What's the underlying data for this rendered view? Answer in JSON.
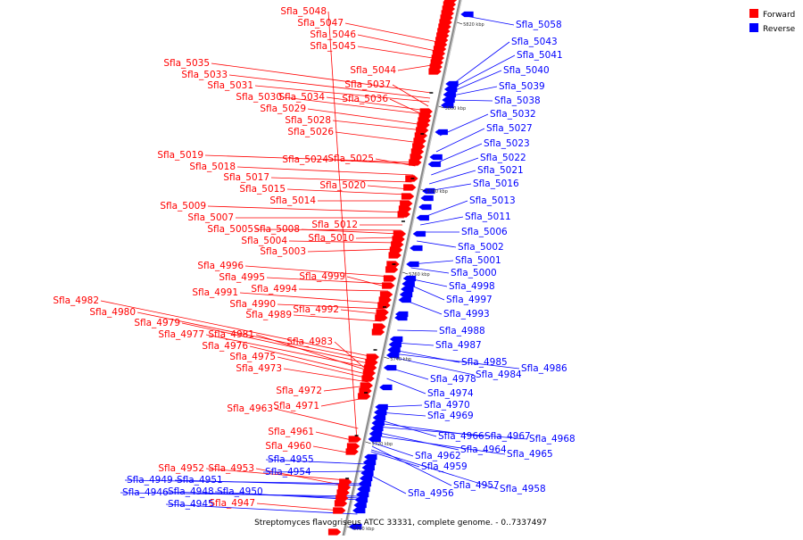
{
  "legend": {
    "forward_label": "Forward",
    "reverse_label": "Reverse",
    "forward_color": "#ff0000",
    "reverse_color": "#0000ff"
  },
  "caption": "Streptomyces flavogriseus ATCC 33331, complete genome. - 0..7337497",
  "scale_labels": [
    "5820 kbp",
    "5800 kbp",
    "5780 kbp",
    "5760 kbp",
    "5740 kbp",
    "5720 kbp",
    "5700 kbp"
  ],
  "forward_genes": [
    "Sfla_5048",
    "Sfla_5047",
    "Sfla_5046",
    "Sfla_5045",
    "Sfla_5044",
    "Sfla_5035",
    "Sfla_5033",
    "Sfla_5031",
    "Sfla_5037",
    "Sfla_5030",
    "Sfla_5034",
    "Sfla_5036",
    "Sfla_5029",
    "Sfla_5028",
    "Sfla_5026",
    "Sfla_5019",
    "Sfla_5024",
    "Sfla_5025",
    "Sfla_5018",
    "Sfla_5017",
    "Sfla_5020",
    "Sfla_5015",
    "Sfla_5014",
    "Sfla_5009",
    "Sfla_5007",
    "Sfla_5012",
    "Sfla_5005",
    "Sfla_5008",
    "Sfla_5010",
    "Sfla_5004",
    "Sfla_5003",
    "Sfla_4996",
    "Sfla_4995",
    "Sfla_4999",
    "Sfla_4994",
    "Sfla_4991",
    "Sfla_4990",
    "Sfla_4992",
    "Sfla_4989",
    "Sfla_4982",
    "Sfla_4980",
    "Sfla_4979",
    "Sfla_4977",
    "Sfla_4981",
    "Sfla_4983",
    "Sfla_4976",
    "Sfla_4975",
    "Sfla_4973",
    "Sfla_4972",
    "Sfla_4963",
    "Sfla_4971",
    "Sfla_4961",
    "Sfla_4960",
    "Sfla_4952",
    "Sfla_4953",
    "Sfla_4947"
  ],
  "reverse_genes": [
    "Sfla_5058",
    "Sfla_5043",
    "Sfla_5041",
    "Sfla_5040",
    "Sfla_5039",
    "Sfla_5038",
    "Sfla_5032",
    "Sfla_5027",
    "Sfla_5023",
    "Sfla_5022",
    "Sfla_5021",
    "Sfla_5016",
    "Sfla_5013",
    "Sfla_5011",
    "Sfla_5006",
    "Sfla_5002",
    "Sfla_5001",
    "Sfla_5000",
    "Sfla_4998",
    "Sfla_4997",
    "Sfla_4993",
    "Sfla_4988",
    "Sfla_4987",
    "Sfla_4985",
    "Sfla_4986",
    "Sfla_4984",
    "Sfla_4978",
    "Sfla_4974",
    "Sfla_4970",
    "Sfla_4969",
    "Sfla_4966",
    "Sfla_4967",
    "Sfla_4968",
    "Sfla_4964",
    "Sfla_4965",
    "Sfla_4962",
    "Sfla_4955",
    "Sfla_4959",
    "Sfla_4954",
    "Sfla_4949",
    "Sfla_4951",
    "Sfla_4957",
    "Sfla_4958",
    "Sfla_4946",
    "Sfla_4948",
    "Sfla_4950",
    "Sfla_4956",
    "Sfla_4945"
  ]
}
